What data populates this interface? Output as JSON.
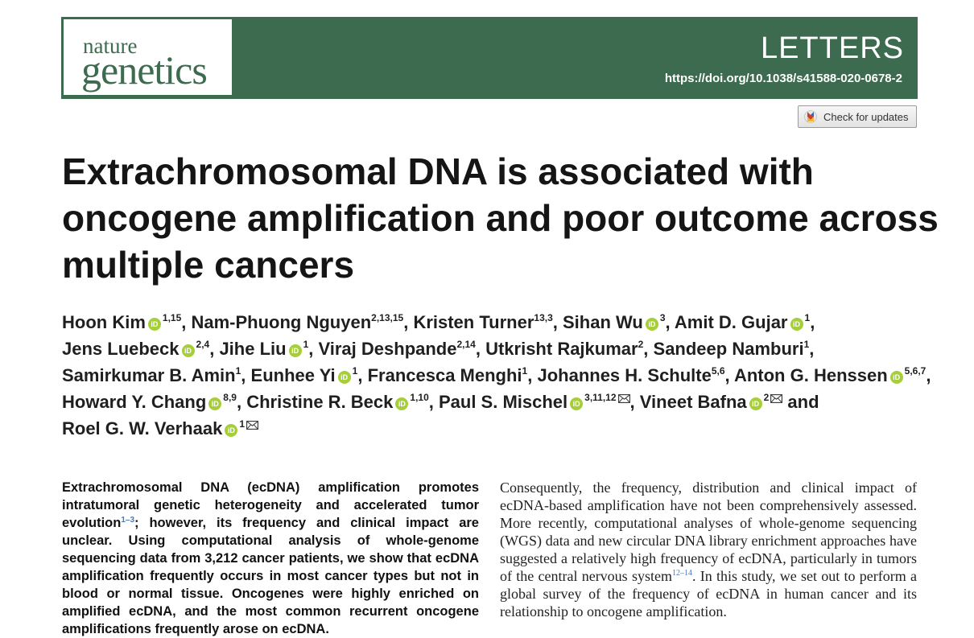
{
  "journal": {
    "logo_top": "nature",
    "logo_bottom": "genetics",
    "section": "LETTERS",
    "doi": "https://doi.org/10.1038/s41588-020-0678-2",
    "check_updates": "Check for updates"
  },
  "article": {
    "title": "Extrachromosomal DNA is associated with oncogene amplification and poor outcome across multiple cancers"
  },
  "authors": [
    {
      "name": "Hoon Kim",
      "orcid": true,
      "affil": "1,15",
      "email": false,
      "sep": ", "
    },
    {
      "name": "Nam-Phuong Nguyen",
      "orcid": false,
      "affil": "2,13,15",
      "email": false,
      "sep": ", "
    },
    {
      "name": "Kristen Turner",
      "orcid": false,
      "affil": "13,3",
      "email": false,
      "sep": ", "
    },
    {
      "name": "Sihan Wu",
      "orcid": true,
      "affil": "3",
      "email": false,
      "sep": ", "
    },
    {
      "name": "Amit D. Gujar",
      "orcid": true,
      "affil": "1",
      "email": false,
      "sep": ", "
    },
    {
      "name": "Jens Luebeck",
      "orcid": true,
      "affil": "2,4",
      "email": false,
      "sep": ", "
    },
    {
      "name": "Jihe Liu",
      "orcid": true,
      "affil": "1",
      "email": false,
      "sep": ", "
    },
    {
      "name": "Viraj Deshpande",
      "orcid": false,
      "affil": "2,14",
      "email": false,
      "sep": ", "
    },
    {
      "name": "Utkrisht Rajkumar",
      "orcid": false,
      "affil": "2",
      "email": false,
      "sep": ", "
    },
    {
      "name": "Sandeep Namburi",
      "orcid": false,
      "affil": "1",
      "email": false,
      "sep": ", "
    },
    {
      "name": "Samirkumar B. Amin",
      "orcid": false,
      "affil": "1",
      "email": false,
      "sep": ", "
    },
    {
      "name": "Eunhee Yi",
      "orcid": true,
      "affil": "1",
      "email": false,
      "sep": ", "
    },
    {
      "name": "Francesca Menghi",
      "orcid": false,
      "affil": "1",
      "email": false,
      "sep": ", "
    },
    {
      "name": "Johannes H. Schulte",
      "orcid": false,
      "affil": "5,6",
      "email": false,
      "sep": ", "
    },
    {
      "name": "Anton G. Henssen",
      "orcid": true,
      "affil": "5,6,7",
      "email": false,
      "sep": ", "
    },
    {
      "name": "Howard Y. Chang",
      "orcid": true,
      "affil": "8,9",
      "email": false,
      "sep": ", "
    },
    {
      "name": "Christine R. Beck",
      "orcid": true,
      "affil": "1,10",
      "email": false,
      "sep": ", "
    },
    {
      "name": "Paul S. Mischel",
      "orcid": true,
      "affil": "3,11,12",
      "email": true,
      "sep": ", "
    },
    {
      "name": "Vineet Bafna",
      "orcid": true,
      "affil": "2",
      "email": true,
      "sep": " and "
    },
    {
      "name": "Roel G. W. Verhaak",
      "orcid": true,
      "affil": "1",
      "email": true,
      "sep": ""
    }
  ],
  "abstract": {
    "p1": "Extrachromosomal DNA (ecDNA) amplification promotes intratumoral genetic heterogeneity and accelerated tumor evolution",
    "ref1": "1–3",
    "p2": "; however, its frequency and clinical impact are unclear. Using computational analysis of whole-genome sequencing data from 3,212 cancer patients, we show that ecDNA amplification frequently occurs in most cancer types but not in blood or normal tissue. Oncogenes were highly enriched on amplified ecDNA, and the most common recurrent oncogene amplifications frequently arose on ecDNA."
  },
  "body": {
    "p1": "Consequently, the frequency, distribution and clinical impact of ecDNA-based amplification have not been comprehensively assessed. More recently, computational analyses of whole-genome sequencing (WGS) data and new circular DNA library enrichment approaches have suggested a relatively high frequency of ecDNA, particularly in tumors of the central nervous system",
    "ref1": "12–14",
    "p2": ". In this study, we set out to perform a global survey of the frequency of ecDNA in human cancer and its relationship to oncogene amplification."
  },
  "colors": {
    "brand_green": "#3d6b4f",
    "orcid_green": "#a6ce39"
  }
}
